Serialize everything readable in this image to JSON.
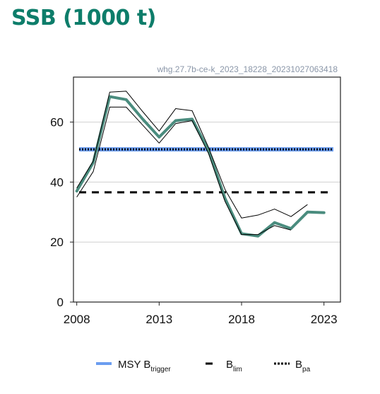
{
  "title": "SSB (1000 t)",
  "watermark": "whg.27.7b-ce-k_2023_18228_20231027063418",
  "colors": {
    "ssb": "#4a8c7e",
    "bounds": "#000000",
    "msy_btrigger": "#6b9df0",
    "blim": "#000000",
    "bpa": "#000000",
    "title": "#0d7d6a",
    "grid": "#d0d0d0"
  },
  "legend": [
    {
      "key": "msy",
      "main": "MSY B",
      "sub": "trigger",
      "style": "solid-blue"
    },
    {
      "key": "blim",
      "main": "B",
      "sub": "lim",
      "style": "dashed"
    },
    {
      "key": "bpa",
      "main": "B",
      "sub": "pa",
      "style": "dotted"
    }
  ],
  "chart_data": {
    "type": "line",
    "title": "SSB (1000 t)",
    "xlabel": "",
    "ylabel": "",
    "xlim": [
      2007.8,
      2024.0
    ],
    "ylim": [
      0,
      75
    ],
    "x_ticks": [
      2008,
      2013,
      2018,
      2023
    ],
    "y_ticks": [
      0,
      20,
      40,
      60
    ],
    "grid": "horizontal",
    "legend_position": "bottom",
    "series": [
      {
        "name": "SSB",
        "x": [
          2008,
          2009,
          2010,
          2011,
          2012,
          2013,
          2014,
          2015,
          2016,
          2017,
          2018,
          2019,
          2020,
          2021,
          2022,
          2023
        ],
        "values": [
          37,
          46.5,
          68.5,
          67.5,
          61,
          55,
          60.5,
          61,
          50.5,
          34.5,
          22.8,
          22,
          26.5,
          24.5,
          30,
          29.8
        ]
      },
      {
        "name": "SSB high",
        "x": [
          2008,
          2009,
          2010,
          2011,
          2012,
          2013,
          2014,
          2015,
          2016,
          2017,
          2018,
          2019,
          2020,
          2021,
          2022
        ],
        "values": [
          38,
          47,
          70,
          70.3,
          63.5,
          57,
          64.5,
          63.8,
          51.5,
          37.5,
          28,
          29,
          31,
          28.5,
          32.5
        ]
      },
      {
        "name": "SSB low",
        "x": [
          2008,
          2009,
          2010,
          2011,
          2012,
          2013,
          2014,
          2015,
          2016,
          2017,
          2018,
          2019,
          2020,
          2021
        ],
        "values": [
          35,
          43.5,
          65,
          65,
          59,
          53,
          59.5,
          60.5,
          49.5,
          33.5,
          22.5,
          22.5,
          25.5,
          24
        ]
      }
    ],
    "reference_lines": [
      {
        "name": "MSY Btrigger",
        "y": 50.9,
        "style": "solid"
      },
      {
        "name": "Bpa",
        "y": 50.9,
        "style": "dotted"
      },
      {
        "name": "Blim",
        "y": 36.6,
        "style": "dashed"
      }
    ]
  }
}
